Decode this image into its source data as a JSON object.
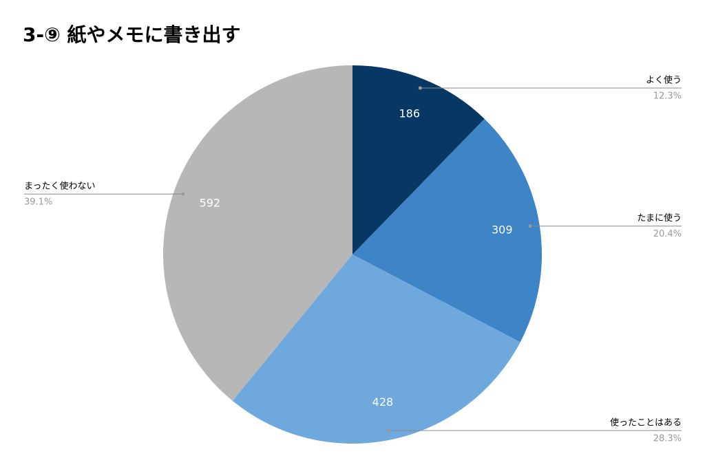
{
  "chart_data": {
    "type": "pie",
    "title": "3-⑨ 紙やメモに書き出す",
    "categories": [
      "よく使う",
      "たまに使う",
      "使ったことはある",
      "まったく使わない"
    ],
    "values": [
      186,
      309,
      428,
      592
    ],
    "percent_labels": [
      "12.3%",
      "20.4%",
      "28.3%",
      "39.1%"
    ],
    "colors": [
      "#073763",
      "#3d85c6",
      "#6fa8dc",
      "#b7b7b7"
    ]
  }
}
